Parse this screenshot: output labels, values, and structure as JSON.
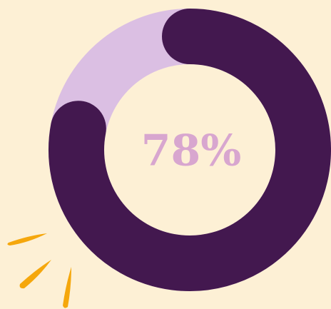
{
  "chart_data": {
    "type": "donut",
    "values": [
      78
    ],
    "value_labels": [
      "78%"
    ],
    "ylim": [
      0,
      100
    ],
    "color": "#43184f",
    "track_color": "#dbbfe3"
  }
}
